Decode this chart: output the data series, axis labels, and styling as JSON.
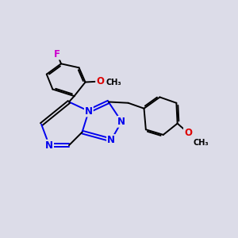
{
  "bg_color": "#dcdce8",
  "bond_color": "#000000",
  "nitrogen_color": "#0000ee",
  "oxygen_color": "#dd0000",
  "fluorine_color": "#cc00cc",
  "line_width": 1.4,
  "dbo": 0.055,
  "font_size": 8.5,
  "small_font_size": 7.0,
  "xlim": [
    0.5,
    9.5
  ],
  "ylim": [
    1.5,
    9.8
  ]
}
